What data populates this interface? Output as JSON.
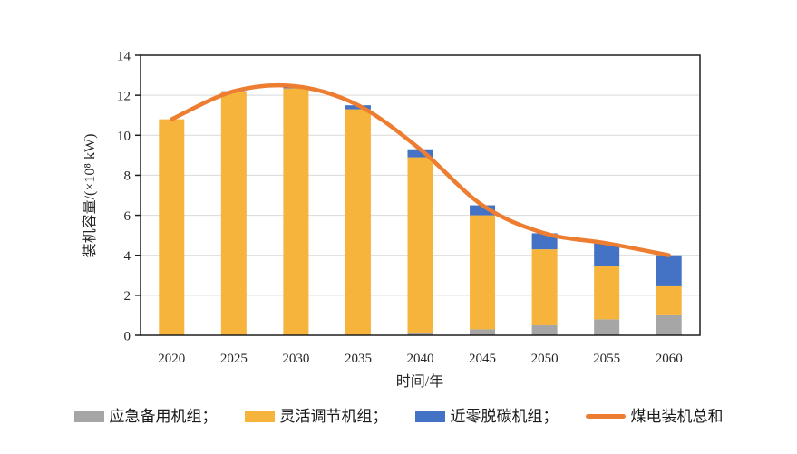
{
  "chart_data": {
    "type": "bar",
    "subtype": "stacked-bars-with-total-line",
    "categories": [
      "2020",
      "2025",
      "2030",
      "2035",
      "2040",
      "2045",
      "2050",
      "2055",
      "2060"
    ],
    "series": [
      {
        "name": "应急备用机组",
        "kind": "bar",
        "color": "#A6A6A6",
        "values": [
          0,
          0,
          0,
          0,
          0.1,
          0.3,
          0.5,
          0.8,
          1.0
        ]
      },
      {
        "name": "灵活调节机组",
        "kind": "bar",
        "color": "#F7B43C",
        "values": [
          10.8,
          12.15,
          12.35,
          11.3,
          8.8,
          5.7,
          3.8,
          2.65,
          1.45
        ]
      },
      {
        "name": "近零脱碳机组",
        "kind": "bar",
        "color": "#4472C4",
        "values": [
          0,
          0.05,
          0.1,
          0.2,
          0.4,
          0.5,
          0.8,
          1.15,
          1.55
        ]
      },
      {
        "name": "煤电装机总和",
        "kind": "line",
        "color": "#ED7D31",
        "values": [
          10.8,
          12.2,
          12.45,
          11.5,
          9.3,
          6.5,
          5.1,
          4.6,
          4.0
        ]
      }
    ],
    "xlabel": "时间/年",
    "ylabel": "装机容量/(×10⁸ kW)",
    "ylim": [
      0,
      14
    ],
    "ytick_step": 2,
    "grid": true,
    "legend_position": "bottom"
  },
  "legend": {
    "items": [
      {
        "label": "应急备用机组；",
        "series": 0
      },
      {
        "label": "灵活调节机组；",
        "series": 1
      },
      {
        "label": "近零脱碳机组；",
        "series": 2
      },
      {
        "label": "煤电装机总和",
        "series": 3
      }
    ]
  },
  "style": {
    "grid_color": "#D9D9D9",
    "axis_color": "#1F1F1F",
    "text_color": "#262626",
    "background": "#FFFFFF"
  }
}
